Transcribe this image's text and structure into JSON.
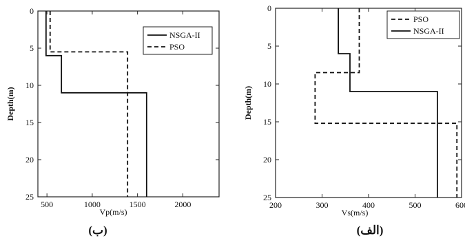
{
  "chart_data": [
    {
      "type": "line",
      "panel": "left",
      "caption": "(ب)",
      "xlabel": "Vp(m/s)",
      "ylabel": "Depth(m)",
      "xlim": [
        400,
        2400
      ],
      "ylim": [
        0,
        25
      ],
      "y_inverted": true,
      "x_tick_labels": [
        [
          "500",
          500
        ],
        [
          "1000",
          1000
        ],
        [
          "1500",
          1500
        ],
        [
          "2000",
          2000
        ]
      ],
      "y_tick_labels": [
        [
          "0",
          0
        ],
        [
          "5",
          5
        ],
        [
          "10",
          10
        ],
        [
          "15",
          15
        ],
        [
          "20",
          20
        ],
        [
          "25",
          25
        ]
      ],
      "legend_position": "top-right",
      "grid": false,
      "series": [
        {
          "name": "NSGA-II",
          "style": "solid",
          "color": "#111111",
          "x": [
            490,
            490,
            660,
            660,
            1600,
            1600
          ],
          "y": [
            0,
            6,
            6,
            11,
            11,
            25
          ]
        },
        {
          "name": "PSO",
          "style": "dashed",
          "color": "#111111",
          "x": [
            535,
            535,
            1390,
            1390
          ],
          "y": [
            0,
            5.5,
            5.5,
            25
          ]
        }
      ]
    },
    {
      "type": "line",
      "panel": "right",
      "caption": "(الف)",
      "xlabel": "Vs(m/s)",
      "ylabel": "Depth(m)",
      "xlim": [
        200,
        600
      ],
      "ylim": [
        0,
        25
      ],
      "y_inverted": true,
      "x_tick_labels": [
        [
          "200",
          200
        ],
        [
          "300",
          300
        ],
        [
          "400",
          400
        ],
        [
          "500",
          500
        ],
        [
          "600",
          600
        ]
      ],
      "y_tick_labels": [
        [
          "0",
          0
        ],
        [
          "5",
          5
        ],
        [
          "10",
          10
        ],
        [
          "15",
          15
        ],
        [
          "20",
          20
        ],
        [
          "25",
          25
        ]
      ],
      "legend_position": "top-right",
      "grid": false,
      "series": [
        {
          "name": "PSO",
          "style": "dashed",
          "color": "#111111",
          "x": [
            380,
            380,
            285,
            285,
            590,
            590
          ],
          "y": [
            0,
            8.5,
            8.5,
            15.2,
            15.2,
            25
          ]
        },
        {
          "name": "NSGA-II",
          "style": "solid",
          "color": "#111111",
          "x": [
            335,
            335,
            360,
            360,
            548,
            548
          ],
          "y": [
            0,
            6,
            6,
            11,
            11,
            25
          ]
        }
      ]
    }
  ]
}
